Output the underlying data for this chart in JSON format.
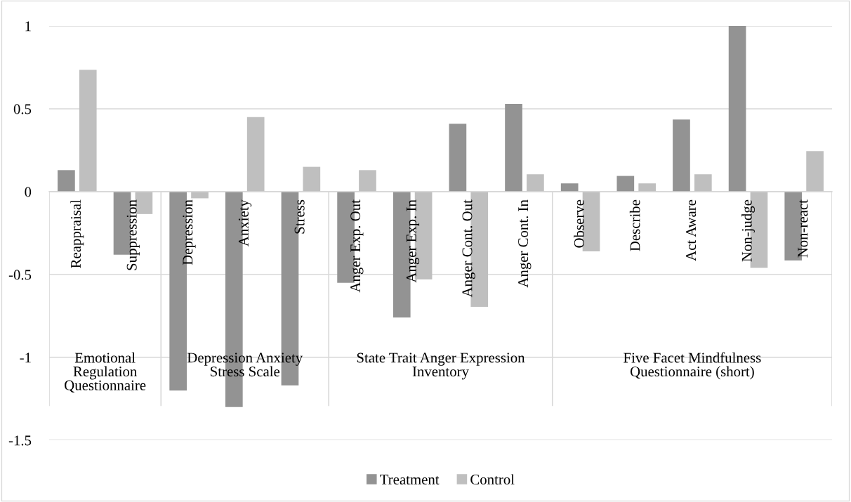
{
  "chart_data": {
    "type": "bar",
    "categories": [
      "Reappraisal",
      "Suppression",
      "Depression",
      "Anxiety",
      "Stress",
      "Anger Exp. Out",
      "Anger Exp. In",
      "Anger Cont. Out",
      "Anger Cont. In",
      "Observe",
      "Describe",
      "Act Aware",
      "Non-judge",
      "Non-react"
    ],
    "series": [
      {
        "name": "Treatment",
        "color": "#939393",
        "values": [
          0.13,
          -0.38,
          -1.2,
          -1.3,
          -1.17,
          -0.55,
          -0.76,
          0.41,
          0.53,
          0.05,
          0.095,
          0.435,
          1.0,
          -0.415
        ]
      },
      {
        "name": "Control",
        "color": "#bfbfbf",
        "values": [
          0.735,
          -0.135,
          -0.04,
          0.45,
          0.15,
          0.13,
          -0.53,
          -0.695,
          0.105,
          -0.36,
          0.05,
          0.105,
          -0.46,
          0.245
        ]
      }
    ],
    "annotations": [
      "Emotional\nRegulation\nQuestionnaire",
      "Depression Anxiety\nStress Scale",
      "State Trait Anger Expression\nInventory",
      "Five Facet Mindfulness\nQuestionnaire (short)"
    ],
    "ylim": [
      -1.5,
      1
    ],
    "yticks": [
      1,
      0.5,
      0,
      -0.5,
      -1,
      -1.5
    ],
    "grid": "y",
    "legend": "bottom"
  }
}
